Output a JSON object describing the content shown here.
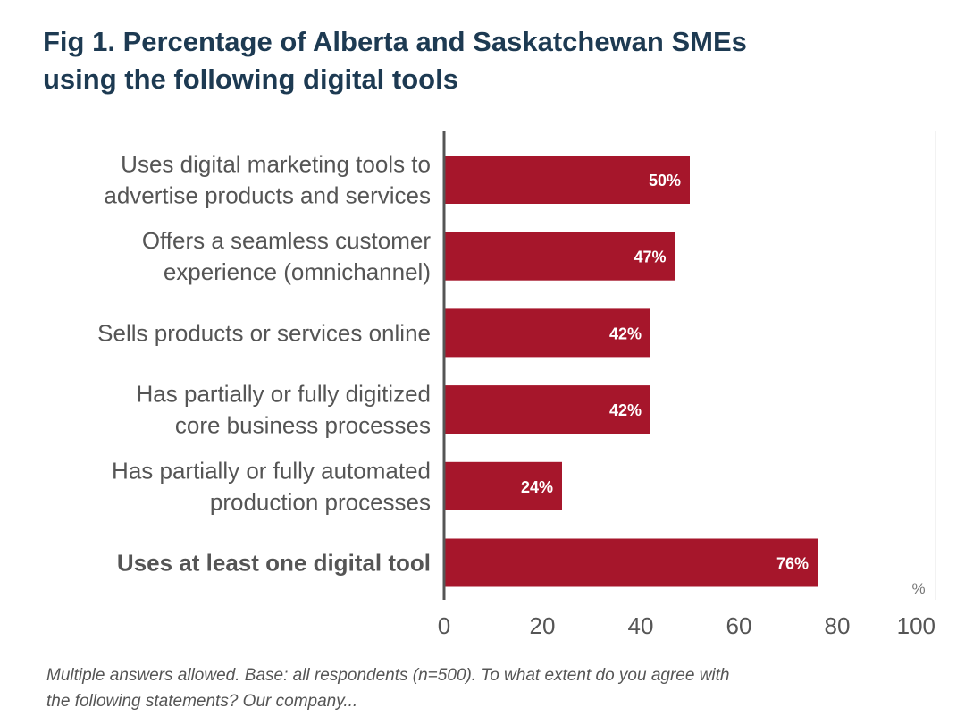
{
  "title_lines": [
    "Fig 1. Percentage of Alberta and Saskatchewan SMEs",
    "using the following digital tools"
  ],
  "note_lines": [
    "Multiple answers allowed. Base: all respondents (n=500). To what extent do you agree with",
    "the following statements? Our company..."
  ],
  "colors": {
    "bar": "#a6162b",
    "axis": "#555555",
    "gridline": "#e6e6e6",
    "label_text": "#555555",
    "value_text": "#ffffff",
    "title_text": "#1d3a52"
  },
  "chart_data": {
    "type": "bar",
    "orientation": "horizontal",
    "categories": [
      [
        "Uses digital marketing tools to",
        "advertise products and services"
      ],
      [
        "Offers a seamless customer",
        "experience (omnichannel)"
      ],
      [
        "Sells products or services online"
      ],
      [
        "Has partially or fully digitized",
        "core business processes"
      ],
      [
        "Has partially or fully automated",
        "production processes"
      ],
      [
        "Uses at least one digital tool"
      ]
    ],
    "bold_categories": [
      5
    ],
    "values": [
      50,
      47,
      42,
      42,
      24,
      76
    ],
    "value_labels": [
      "50%",
      "47%",
      "42%",
      "42%",
      "24%",
      "76%"
    ],
    "xlim": [
      0,
      100
    ],
    "xticks": [
      "0",
      "20",
      "40",
      "60",
      "80",
      "100"
    ],
    "x_unit_label": "%",
    "grid": true
  }
}
